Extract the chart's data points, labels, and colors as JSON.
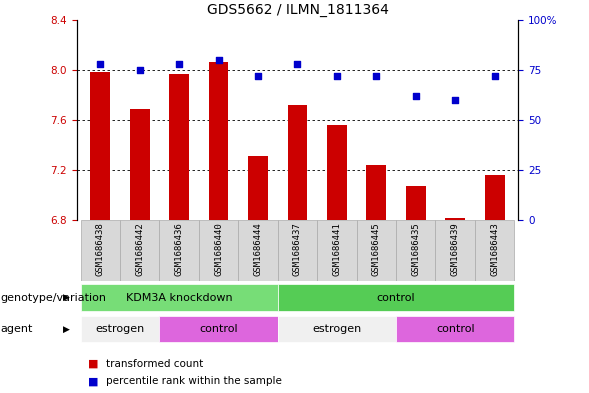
{
  "title": "GDS5662 / ILMN_1811364",
  "samples": [
    "GSM1686438",
    "GSM1686442",
    "GSM1686436",
    "GSM1686440",
    "GSM1686444",
    "GSM1686437",
    "GSM1686441",
    "GSM1686445",
    "GSM1686435",
    "GSM1686439",
    "GSM1686443"
  ],
  "bar_values": [
    7.98,
    7.69,
    7.97,
    8.06,
    7.31,
    7.72,
    7.56,
    7.24,
    7.07,
    6.82,
    7.16
  ],
  "dot_values": [
    78,
    75,
    78,
    80,
    72,
    78,
    72,
    72,
    62,
    60,
    72
  ],
  "ylim_left": [
    6.8,
    8.4
  ],
  "ylim_right": [
    0,
    100
  ],
  "yticks_left": [
    6.8,
    7.2,
    7.6,
    8.0,
    8.4
  ],
  "yticks_right": [
    0,
    25,
    50,
    75,
    100
  ],
  "bar_color": "#cc0000",
  "dot_color": "#0000cc",
  "bar_width": 0.5,
  "genotype_groups": [
    {
      "label": "KDM3A knockdown",
      "start": 0,
      "end": 5,
      "color": "#77dd77"
    },
    {
      "label": "control",
      "start": 5,
      "end": 11,
      "color": "#55cc55"
    }
  ],
  "agent_groups": [
    {
      "label": "estrogen",
      "start": 0,
      "end": 2,
      "color": "#f0f0f0"
    },
    {
      "label": "control",
      "start": 2,
      "end": 5,
      "color": "#dd66dd"
    },
    {
      "label": "estrogen",
      "start": 5,
      "end": 8,
      "color": "#f0f0f0"
    },
    {
      "label": "control",
      "start": 8,
      "end": 11,
      "color": "#dd66dd"
    }
  ],
  "legend_bar_label": "transformed count",
  "legend_dot_label": "percentile rank within the sample",
  "genotype_label": "genotype/variation",
  "agent_label": "agent",
  "grid_color": "#000000",
  "background_color": "#ffffff",
  "tick_color_left": "#cc0000",
  "tick_color_right": "#0000cc",
  "title_fontsize": 10,
  "tick_fontsize": 7.5,
  "label_fontsize": 8,
  "sample_fontsize": 6.5,
  "row_label_fontsize": 8,
  "legend_fontsize": 7.5
}
